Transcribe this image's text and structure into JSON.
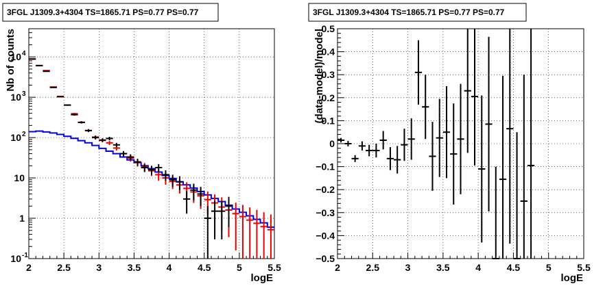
{
  "colors": {
    "data": "#000000",
    "model": "#0000ee",
    "model_points": "#ee0000",
    "grid": "#000000",
    "frame": "#000000"
  },
  "chart_data": [
    {
      "type": "scatter",
      "title": "3FGL J1309.3+4304 TS=1865.71 PS=0.77 PS=0.77",
      "xlabel": "logE",
      "ylabel": "Nb of counts",
      "xlim": [
        2,
        5.5
      ],
      "ylim": [
        0.1,
        50000
      ],
      "yscale": "log",
      "grid": true,
      "xticks": [
        "2",
        "2.5",
        "3",
        "3.5",
        "4",
        "4.5",
        "5",
        "5.5"
      ],
      "yticks": [
        {
          "value": 0.1,
          "label": "10",
          "sup": "-1"
        },
        {
          "value": 1,
          "label": "1",
          "sup": ""
        },
        {
          "value": 10,
          "label": "10",
          "sup": ""
        },
        {
          "value": 100,
          "label": "10",
          "sup": "2"
        },
        {
          "value": 1000,
          "label": "10",
          "sup": "3"
        },
        {
          "value": 10000,
          "label": "10",
          "sup": "4"
        }
      ],
      "series": [
        {
          "kind": "data_points",
          "x": [
            2.05,
            2.15,
            2.25,
            2.35,
            2.45,
            2.55,
            2.65,
            2.75,
            2.85,
            2.95,
            3.05,
            3.15,
            3.25,
            3.35,
            3.45,
            3.55,
            3.65,
            3.75,
            3.85,
            3.95,
            4.05,
            4.15,
            4.25,
            4.35,
            4.45,
            4.55,
            4.65,
            4.75,
            4.85
          ],
          "y": [
            8900,
            6100,
            4400,
            1750,
            1030,
            640,
            370,
            238,
            149,
            100,
            87,
            95,
            66,
            40,
            33,
            25,
            18,
            16,
            18,
            12,
            9,
            8,
            3,
            5,
            4,
            1,
            1.5,
            1.5,
            2
          ],
          "err_lo": [
            94,
            78,
            66,
            42,
            32,
            25,
            19,
            15,
            12,
            10,
            9,
            9.5,
            8,
            6,
            5.5,
            5,
            4,
            4,
            4,
            3.5,
            3,
            3,
            1.7,
            2.2,
            2,
            1,
            1.2,
            1.2,
            1.4
          ],
          "err_hi": [
            94,
            78,
            66,
            42,
            32,
            25,
            19,
            15,
            12,
            10,
            9,
            9.5,
            8,
            6,
            5.5,
            5,
            4,
            4,
            4,
            3.5,
            3,
            3,
            1.7,
            2.2,
            2,
            1,
            1.2,
            1.2,
            1.4
          ]
        },
        {
          "kind": "model_points",
          "x": [
            2.05,
            2.15,
            2.25,
            2.35,
            2.45,
            2.55,
            2.65,
            2.75,
            2.85,
            2.95,
            3.05,
            3.15,
            3.25,
            3.35,
            3.45,
            3.55,
            3.65,
            3.75,
            3.85,
            3.95,
            4.05,
            4.15,
            4.25,
            4.35,
            4.45,
            4.55,
            4.65,
            4.75,
            4.85,
            4.95,
            5.05,
            5.15,
            5.25,
            5.35,
            5.45
          ],
          "y": [
            8800,
            6100,
            4600,
            1800,
            1050,
            640,
            390,
            240,
            150,
            103,
            85,
            74,
            55,
            40,
            31,
            24,
            19,
            15,
            12,
            10,
            8.2,
            6.7,
            5.5,
            4.5,
            3.6,
            2.9,
            2.4,
            1.9,
            1.6,
            1.3,
            1.1,
            0.9,
            0.75,
            0.62,
            0.52
          ],
          "err": [
            94,
            78,
            68,
            42,
            32,
            25,
            20,
            15,
            12,
            10,
            9,
            8.6,
            7.4,
            6.3,
            5.6,
            4.9,
            4.4,
            3.9,
            3.5,
            3.2,
            2.9,
            2.6,
            2.3,
            2.1,
            1.9,
            1.7,
            1.5,
            1.4,
            1.26,
            1.14,
            1.05,
            0.95,
            0.87,
            0.79,
            0.72
          ]
        },
        {
          "kind": "model_line",
          "x": [
            2.05,
            2.15,
            2.25,
            2.35,
            2.45,
            2.55,
            2.65,
            2.75,
            2.85,
            2.95,
            3.05,
            3.15,
            3.25,
            3.35,
            3.45,
            3.55,
            3.65,
            3.75,
            3.85,
            3.95,
            4.05,
            4.15,
            4.25,
            4.35,
            4.45,
            4.55,
            4.65,
            4.75,
            4.85,
            4.95,
            5.05,
            5.15,
            5.25,
            5.35,
            5.45
          ],
          "y": [
            140,
            145,
            138,
            130,
            120,
            108,
            96,
            84,
            74,
            64,
            54,
            46,
            40,
            33,
            28,
            24,
            20,
            17,
            14,
            11.5,
            9.7,
            8,
            6.7,
            5.6,
            4.6,
            3.8,
            3.1,
            2.6,
            2.1,
            1.7,
            1.4,
            1.15,
            0.94,
            0.77,
            0.6
          ]
        }
      ]
    },
    {
      "type": "scatter",
      "title": "3FGL J1309.3+4304 TS=1865.71 PS=0.77 PS=0.77",
      "xlabel": "logE",
      "ylabel": "(data-model)/model",
      "xlim": [
        2,
        5.5
      ],
      "ylim": [
        -0.5,
        0.5
      ],
      "grid": true,
      "xticks": [
        "2",
        "2.5",
        "3",
        "3.5",
        "4",
        "4.5",
        "5",
        "5.5"
      ],
      "yticks": [
        "0.5",
        "0.4",
        "0.3",
        "0.2",
        "0.1",
        "0",
        "−0.1",
        "−0.2",
        "−0.3",
        "−0.4",
        "−0.5"
      ],
      "series": [
        {
          "kind": "residuals",
          "x": [
            2.05,
            2.15,
            2.25,
            2.35,
            2.45,
            2.55,
            2.65,
            2.75,
            2.85,
            2.95,
            3.05,
            3.15,
            3.25,
            3.35,
            3.45,
            3.55,
            3.65,
            3.75,
            3.85,
            3.95,
            4.05,
            4.15,
            4.25,
            4.35,
            4.45,
            4.55,
            4.65,
            4.75
          ],
          "y": [
            0.015,
            0.0,
            -0.065,
            -0.01,
            -0.03,
            -0.03,
            0.015,
            -0.065,
            -0.07,
            -0.005,
            0.02,
            0.31,
            0.16,
            -0.055,
            0.025,
            0.05,
            -0.045,
            0.02,
            0.23,
            0.205,
            -0.11,
            0.085,
            -0.5,
            -0.155,
            0.065,
            -0.5,
            -0.25,
            -0.095
          ],
          "err": [
            0.01,
            0.012,
            0.015,
            0.02,
            0.025,
            0.03,
            0.04,
            0.05,
            0.06,
            0.07,
            0.09,
            0.14,
            0.14,
            0.15,
            0.17,
            0.2,
            0.22,
            0.24,
            0.27,
            0.3,
            0.32,
            0.38,
            0.4,
            0.45,
            0.5,
            0.55,
            0.55,
            0.6
          ]
        }
      ]
    }
  ]
}
